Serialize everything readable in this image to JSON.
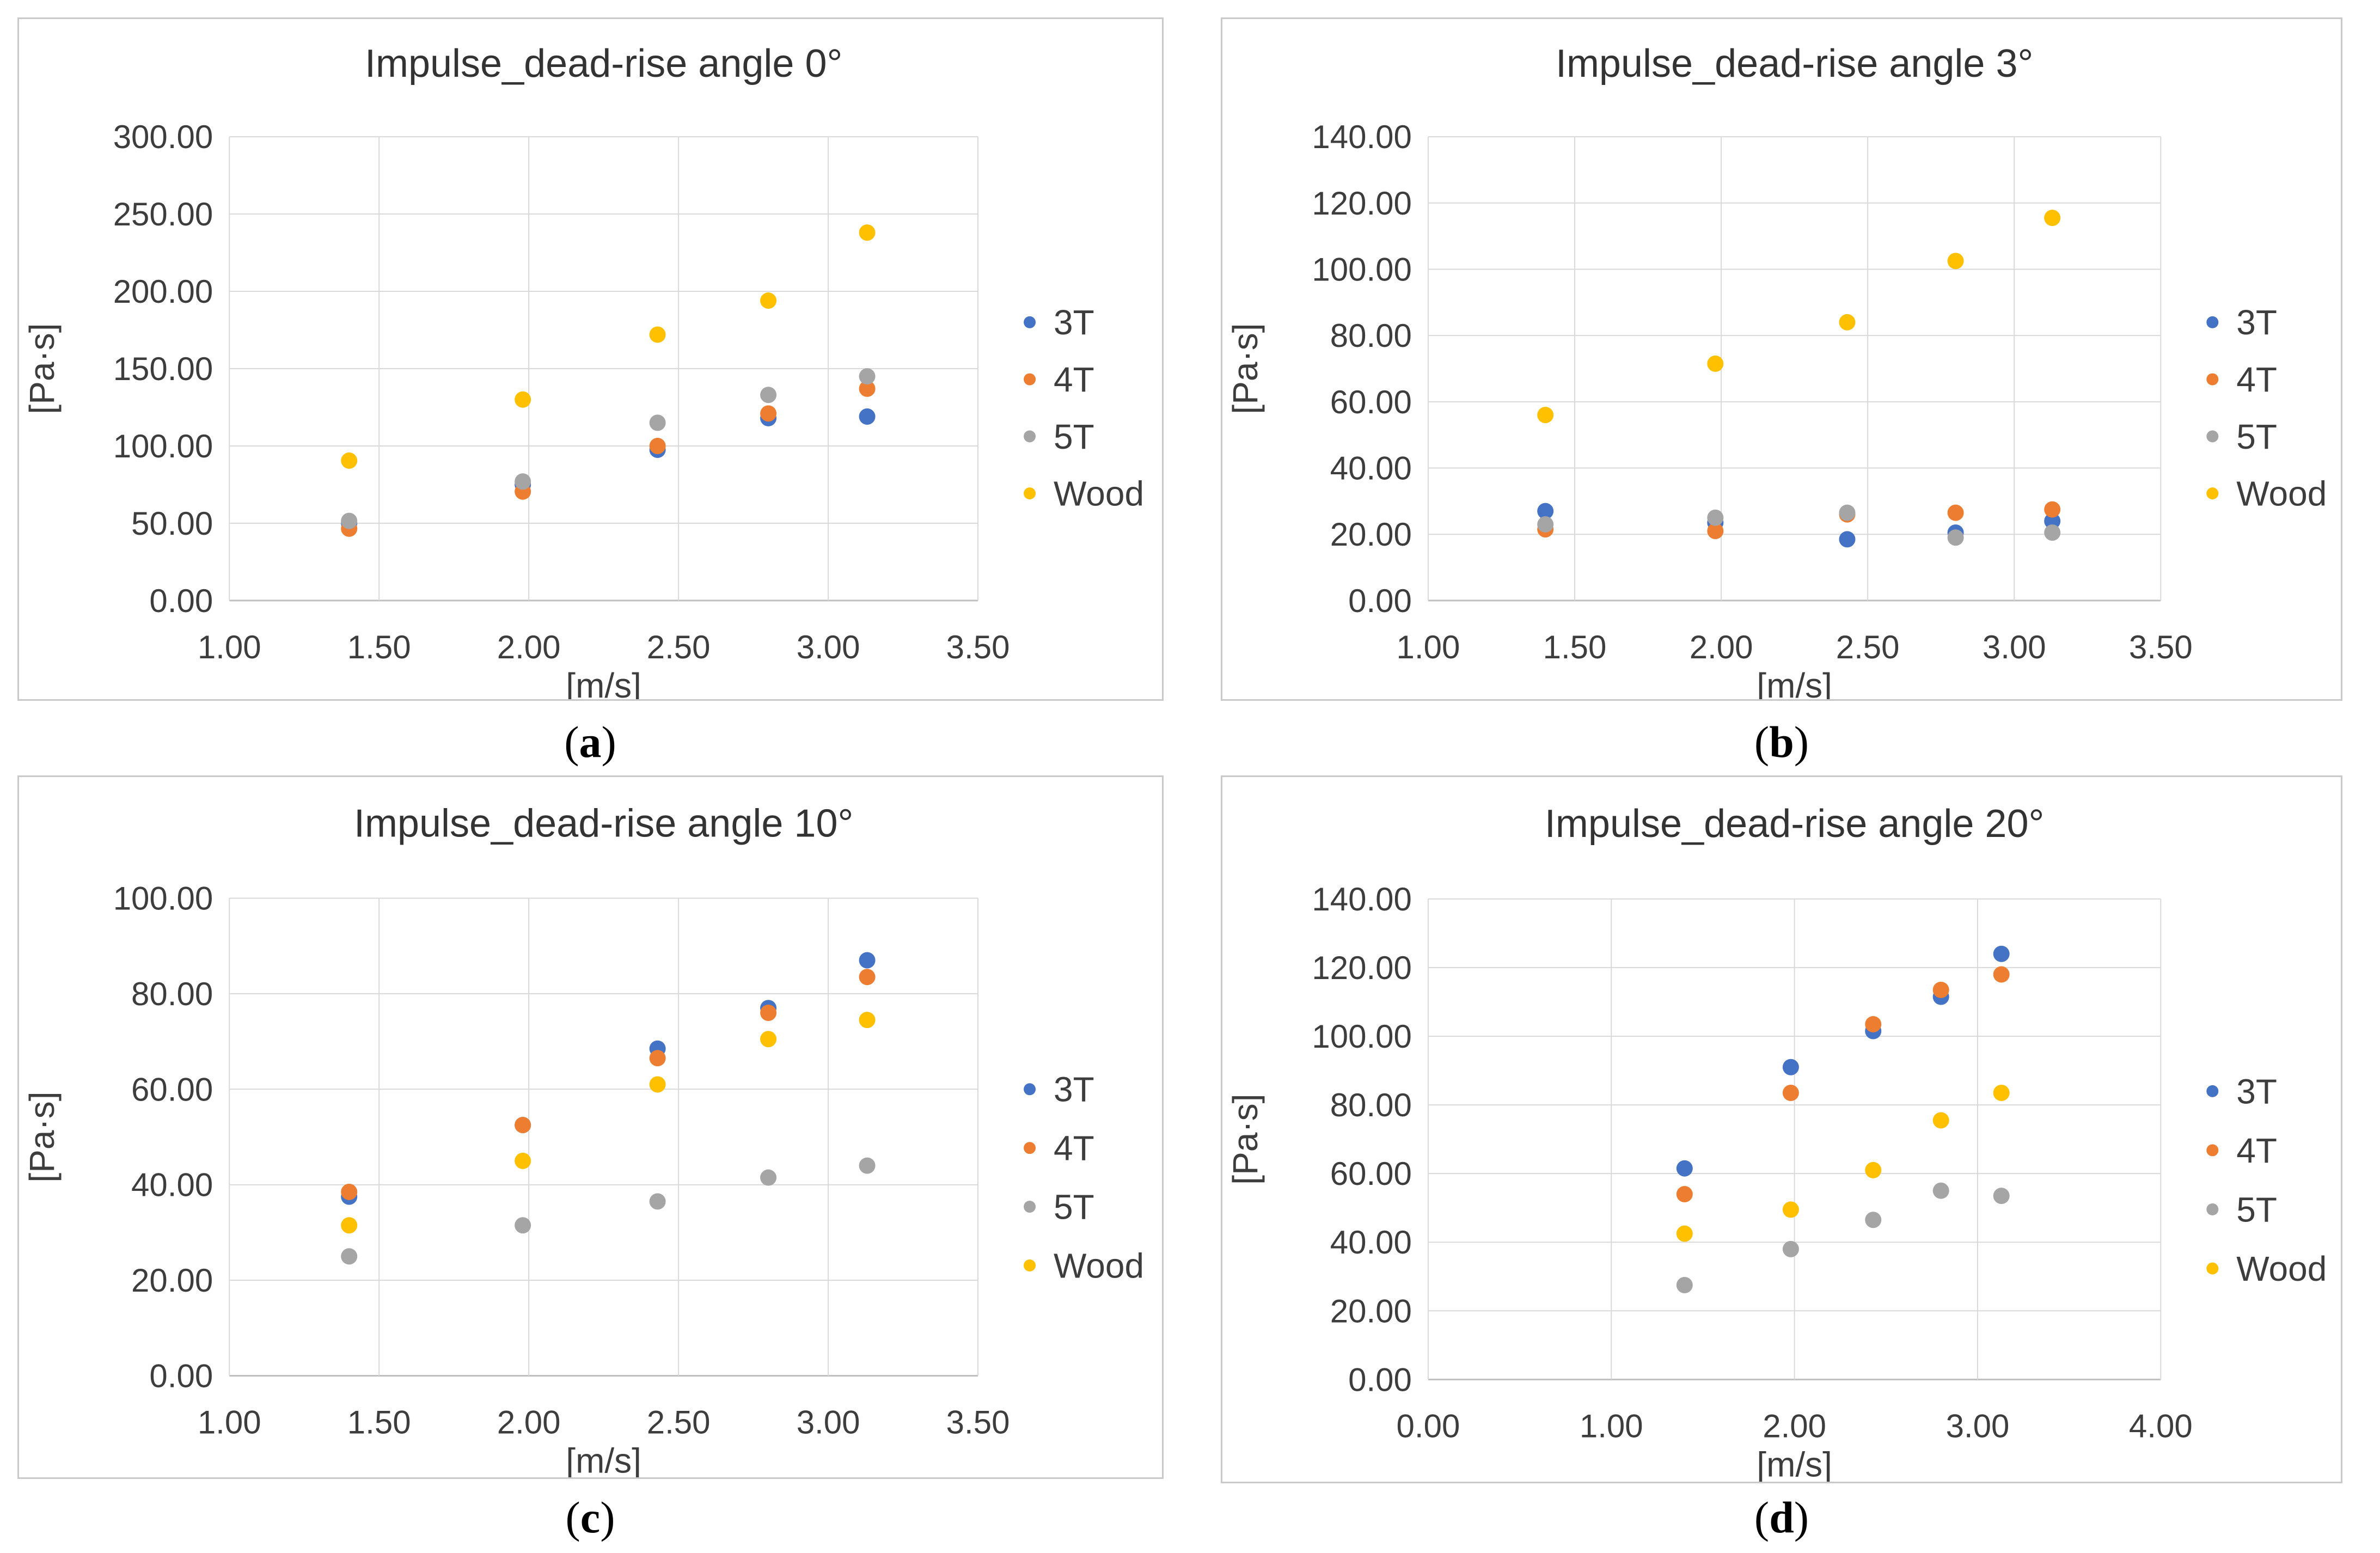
{
  "figure": {
    "background": "#ffffff",
    "grid_color": "#d9d9d9",
    "axis_line_color": "#bfbfbf",
    "panel_border_color": "#c9c9c9",
    "text_color": "#3d3d3d",
    "series_colors": {
      "3T": "#4472C4",
      "4T": "#ED7D31",
      "5T": "#A5A5A5",
      "Wood": "#FFC000"
    }
  },
  "captions": {
    "a": {
      "open": "(",
      "letter": "a",
      "close": ")"
    },
    "b": {
      "open": "(",
      "letter": "b",
      "close": ")"
    },
    "c": {
      "open": "(",
      "letter": "c",
      "close": ")"
    },
    "d": {
      "open": "(",
      "letter": "d",
      "close": ")"
    }
  },
  "chart_data": [
    {
      "id": "a",
      "type": "scatter",
      "title": "Impulse_dead-rise angle 0°",
      "xlabel": "[m/s]",
      "ylabel": "[Pa·s]",
      "xlim": [
        1.0,
        3.5
      ],
      "xtick_step": 0.5,
      "ylim": [
        0.0,
        300.0
      ],
      "ytick_step": 50.0,
      "tick_decimals": 2,
      "grid": true,
      "legend_position": "right",
      "legend": [
        "3T",
        "4T",
        "5T",
        "Wood"
      ],
      "x": [
        1.4,
        1.98,
        2.43,
        2.8,
        3.13
      ],
      "series": [
        {
          "name": "3T",
          "values": [
            50.0,
            75.0,
            97.5,
            118.0,
            119.0
          ]
        },
        {
          "name": "4T",
          "values": [
            46.5,
            70.5,
            100.0,
            121.0,
            137.0
          ]
        },
        {
          "name": "5T",
          "values": [
            51.5,
            77.0,
            115.0,
            133.0,
            145.0
          ]
        },
        {
          "name": "Wood",
          "values": [
            90.5,
            130.0,
            172.0,
            194.0,
            238.0
          ]
        }
      ]
    },
    {
      "id": "b",
      "type": "scatter",
      "title": "Impulse_dead-rise angle 3°",
      "xlabel": "[m/s]",
      "ylabel": "[Pa·s]",
      "xlim": [
        1.0,
        3.5
      ],
      "xtick_step": 0.5,
      "ylim": [
        0.0,
        140.0
      ],
      "ytick_step": 20.0,
      "tick_decimals": 2,
      "grid": true,
      "legend_position": "right",
      "legend": [
        "3T",
        "4T",
        "5T",
        "Wood"
      ],
      "x": [
        1.4,
        1.98,
        2.43,
        2.8,
        3.13
      ],
      "series": [
        {
          "name": "3T",
          "values": [
            27.0,
            23.5,
            18.5,
            20.5,
            24.0
          ]
        },
        {
          "name": "4T",
          "values": [
            21.5,
            21.0,
            26.0,
            26.5,
            27.5
          ]
        },
        {
          "name": "5T",
          "values": [
            23.0,
            25.0,
            26.5,
            19.0,
            20.5
          ]
        },
        {
          "name": "Wood",
          "values": [
            56.0,
            71.5,
            84.0,
            102.5,
            115.5
          ]
        }
      ]
    },
    {
      "id": "c",
      "type": "scatter",
      "title": "Impulse_dead-rise angle 10°",
      "xlabel": "[m/s]",
      "ylabel": "[Pa·s]",
      "xlim": [
        1.0,
        3.5
      ],
      "xtick_step": 0.5,
      "ylim": [
        0.0,
        100.0
      ],
      "ytick_step": 20.0,
      "tick_decimals": 2,
      "grid": true,
      "legend_position": "right",
      "legend": [
        "3T",
        "4T",
        "5T",
        "Wood"
      ],
      "x": [
        1.4,
        1.98,
        2.43,
        2.8,
        3.13
      ],
      "series": [
        {
          "name": "3T",
          "values": [
            37.5,
            52.5,
            68.5,
            77.0,
            87.0
          ]
        },
        {
          "name": "4T",
          "values": [
            38.5,
            52.5,
            66.5,
            76.0,
            83.5
          ]
        },
        {
          "name": "5T",
          "values": [
            25.0,
            31.5,
            36.5,
            41.5,
            44.0
          ]
        },
        {
          "name": "Wood",
          "values": [
            31.5,
            45.0,
            61.0,
            70.5,
            74.5
          ]
        }
      ]
    },
    {
      "id": "d",
      "type": "scatter",
      "title": "Impulse_dead-rise angle 20°",
      "xlabel": "[m/s]",
      "ylabel": "[Pa·s]",
      "xlim": [
        0.0,
        4.0
      ],
      "xtick_step": 1.0,
      "ylim": [
        0.0,
        140.0
      ],
      "ytick_step": 20.0,
      "tick_decimals": 2,
      "grid": true,
      "legend_position": "right",
      "legend": [
        "3T",
        "4T",
        "5T",
        "Wood"
      ],
      "x": [
        1.4,
        1.98,
        2.43,
        2.8,
        3.13
      ],
      "series": [
        {
          "name": "3T",
          "values": [
            61.5,
            91.0,
            101.5,
            111.5,
            124.0
          ]
        },
        {
          "name": "4T",
          "values": [
            54.0,
            83.5,
            103.5,
            113.5,
            118.0
          ]
        },
        {
          "name": "5T",
          "values": [
            27.5,
            38.0,
            46.5,
            55.0,
            53.5
          ]
        },
        {
          "name": "Wood",
          "values": [
            42.5,
            49.5,
            61.0,
            75.5,
            83.5
          ]
        }
      ]
    }
  ]
}
